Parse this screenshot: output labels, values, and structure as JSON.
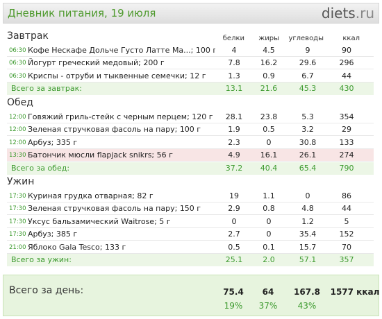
{
  "header": {
    "title": "Дневник питания, 19 июля",
    "logo_main": "diets",
    "logo_tld": ".ru"
  },
  "columns": {
    "protein": "белки",
    "fat": "жиры",
    "carbs": "углеводы",
    "kcal": "ккал"
  },
  "meals": [
    {
      "title": "Завтрак",
      "items": [
        {
          "time": "06:30",
          "name": "Кофе Нескафе Дольче Густо Латте Ма...; 100 г",
          "p": "4",
          "f": "4.5",
          "c": "9",
          "k": "90"
        },
        {
          "time": "06:30",
          "name": "Йогурт греческий медовый; 200 г",
          "p": "7.8",
          "f": "16.2",
          "c": "29.6",
          "k": "296"
        },
        {
          "time": "06:30",
          "name": "Криспы - отруби и тыквенные семечки; 12 г",
          "p": "1.3",
          "f": "0.9",
          "c": "6.7",
          "k": "44"
        }
      ],
      "total": {
        "label": "Всего за завтрак:",
        "p": "13.1",
        "f": "21.6",
        "c": "45.3",
        "k": "430"
      }
    },
    {
      "title": "Обед",
      "items": [
        {
          "time": "12:00",
          "name": "Говяжий гриль-стейк с черным перцем; 120 г",
          "p": "28.1",
          "f": "23.8",
          "c": "5.3",
          "k": "354"
        },
        {
          "time": "12:00",
          "name": "Зеленая стручковая фасоль на пару; 100 г",
          "p": "1.9",
          "f": "0.5",
          "c": "3.2",
          "k": "29"
        },
        {
          "time": "12:00",
          "name": "Арбуз; 335 г",
          "p": "2.3",
          "f": "0",
          "c": "30.8",
          "k": "133"
        },
        {
          "time": "13:30",
          "name": "Батончик мюсли flapjack snikrs; 56 г",
          "p": "4.9",
          "f": "16.1",
          "c": "26.1",
          "k": "274",
          "highlight": true
        }
      ],
      "total": {
        "label": "Всего за обед:",
        "p": "37.2",
        "f": "40.4",
        "c": "65.4",
        "k": "790"
      }
    },
    {
      "title": "Ужин",
      "items": [
        {
          "time": "17:30",
          "name": "Куриная грудка отварная; 82 г",
          "p": "19",
          "f": "1.1",
          "c": "0",
          "k": "86"
        },
        {
          "time": "17:30",
          "name": "Зеленая стручковая фасоль на пару; 150 г",
          "p": "2.9",
          "f": "0.8",
          "c": "4.8",
          "k": "44"
        },
        {
          "time": "17:30",
          "name": "Уксус бальзамический Waitrose; 5 г",
          "p": "0",
          "f": "0",
          "c": "1.2",
          "k": "5"
        },
        {
          "time": "17:30",
          "name": "Арбуз; 385 г",
          "p": "2.7",
          "f": "0",
          "c": "35.4",
          "k": "152"
        },
        {
          "time": "21:00",
          "name": "Яблоко Gala Tesco; 133 г",
          "p": "0.5",
          "f": "0.1",
          "c": "15.7",
          "k": "70"
        }
      ],
      "total": {
        "label": "Всего за ужин:",
        "p": "25.1",
        "f": "2.0",
        "c": "57.1",
        "k": "357"
      }
    }
  ],
  "day": {
    "label": "Всего за день:",
    "p": "75.4",
    "f": "64",
    "c": "167.8",
    "k": "1577 ккал",
    "pp": "19%",
    "fp": "37%",
    "cp": "43%"
  }
}
